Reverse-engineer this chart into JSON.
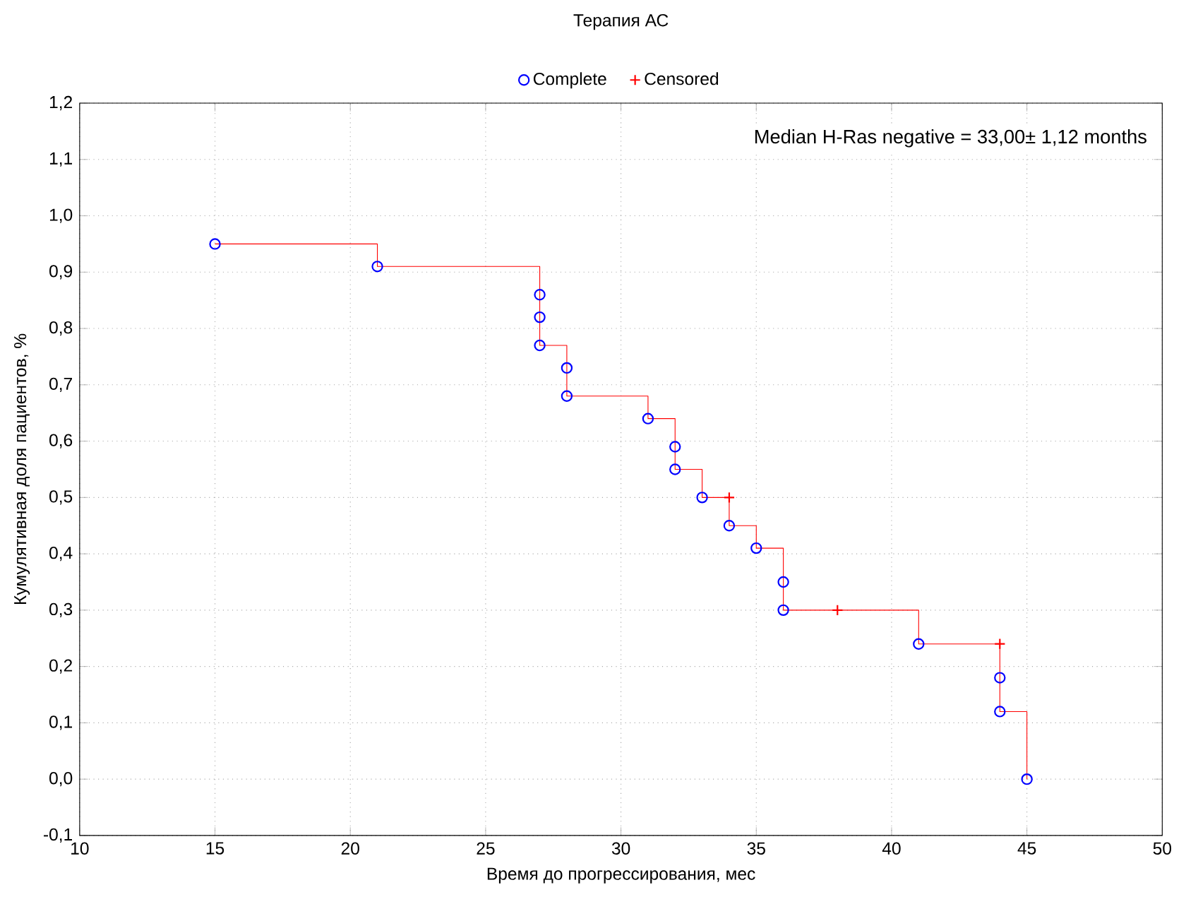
{
  "chart_data": {
    "type": "scatter",
    "legend_title": "Терапия АС",
    "xlabel": "Время до прогрессирования, мес",
    "ylabel": "Кумулятивная доля пациентов, %",
    "annotations": [
      "Median H-Ras negative = 33,00± 1,12 months"
    ],
    "xlim": [
      10,
      50
    ],
    "xticks": [
      10,
      15,
      20,
      25,
      30,
      35,
      40,
      45,
      50
    ],
    "ylim": [
      -0.1,
      1.2
    ],
    "yticks": [
      {
        "value": -0.1,
        "label": "-0,1"
      },
      {
        "value": 0,
        "label": "0,0"
      },
      {
        "value": 0.1,
        "label": "0,1"
      },
      {
        "value": 0.2,
        "label": "0,2"
      },
      {
        "value": 0.3,
        "label": "0,3"
      },
      {
        "value": 0.4,
        "label": "0,4"
      },
      {
        "value": 0.5,
        "label": "0,5"
      },
      {
        "value": 0.6,
        "label": "0,6"
      },
      {
        "value": 0.7,
        "label": "0,7"
      },
      {
        "value": 0.8,
        "label": "0,8"
      },
      {
        "value": 0.9,
        "label": "0,9"
      },
      {
        "value": 1.0,
        "label": "1,0"
      },
      {
        "value": 1.1,
        "label": "1,1"
      },
      {
        "value": 1.2,
        "label": "1,2"
      }
    ],
    "grid": true,
    "legend": "top",
    "series": [
      {
        "type": "step",
        "color": "#ff0000",
        "marker": "none",
        "x": [
          15,
          21,
          27,
          28,
          31,
          32,
          33,
          34,
          35,
          36,
          41,
          44,
          45
        ],
        "values": [
          0.95,
          0.91,
          0.77,
          0.68,
          0.64,
          0.55,
          0.5,
          0.45,
          0.41,
          0.3,
          0.24,
          0.12,
          0.0
        ]
      },
      {
        "name": "Complete",
        "color": "#0000ff",
        "marker": "circle",
        "x": [
          15,
          21,
          27,
          27,
          27,
          28,
          28,
          31,
          32,
          32,
          33,
          34,
          35,
          36,
          36,
          41,
          44,
          44,
          45
        ],
        "values": [
          0.95,
          0.91,
          0.86,
          0.82,
          0.77,
          0.73,
          0.68,
          0.64,
          0.59,
          0.55,
          0.5,
          0.45,
          0.41,
          0.35,
          0.3,
          0.24,
          0.18,
          0.12,
          0.0
        ]
      },
      {
        "name": "Censored",
        "color": "#ff0000",
        "marker": "cross",
        "x": [
          34,
          38,
          44
        ],
        "values": [
          0.5,
          0.3,
          0.24
        ]
      }
    ]
  }
}
